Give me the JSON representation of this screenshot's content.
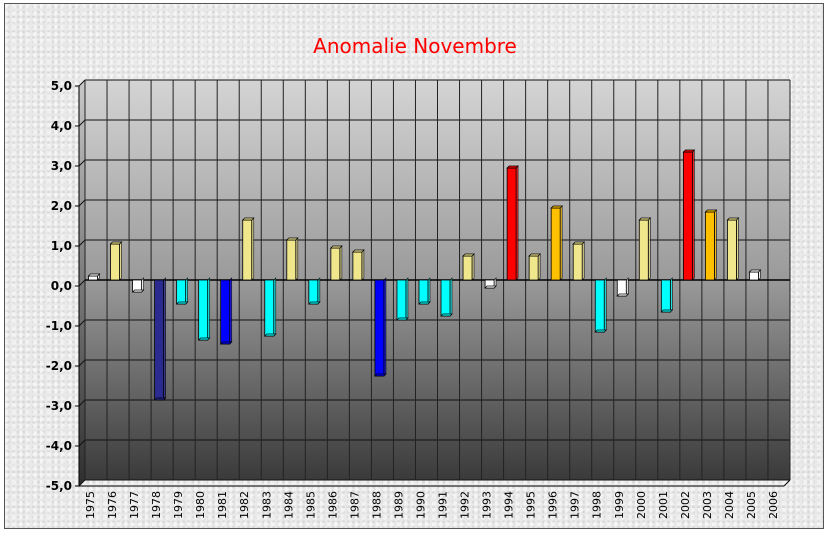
{
  "chart_data": {
    "type": "bar",
    "title": "Anomalie Novembre",
    "xlabel": "",
    "ylabel": "",
    "ylim": [
      -5,
      5
    ],
    "yticks": [
      "5,0",
      "4,0",
      "3,0",
      "2,0",
      "1,0",
      "0,0",
      "-1,0",
      "-2,0",
      "-3,0",
      "-4,0",
      "-5,0"
    ],
    "ytick_values": [
      5,
      4,
      3,
      2,
      1,
      0,
      -1,
      -2,
      -3,
      -4,
      -5
    ],
    "categories": [
      "1975",
      "1976",
      "1977",
      "1978",
      "1979",
      "1980",
      "1981",
      "1982",
      "1983",
      "1984",
      "1985",
      "1986",
      "1987",
      "1988",
      "1989",
      "1990",
      "1991",
      "1992",
      "1993",
      "1994",
      "1995",
      "1996",
      "1997",
      "1998",
      "1999",
      "2000",
      "2001",
      "2002",
      "2003",
      "2004",
      "2005",
      "2006"
    ],
    "values": [
      0.1,
      0.9,
      -0.3,
      -3.0,
      -0.6,
      -1.5,
      -1.6,
      1.5,
      -1.4,
      1.0,
      -0.6,
      0.8,
      0.7,
      -2.4,
      -1.0,
      -0.6,
      -0.9,
      0.6,
      -0.2,
      2.8,
      0.6,
      1.8,
      0.9,
      -1.3,
      -0.4,
      1.5,
      -0.8,
      3.2,
      1.7,
      1.5,
      0.2,
      null
    ],
    "colors": [
      "#ffffff",
      "#f0e68c",
      "#ffffff",
      "#2a2a90",
      "#00ffff",
      "#00ffff",
      "#0000ff",
      "#f0e68c",
      "#00ffff",
      "#f0e68c",
      "#00ffff",
      "#f0e68c",
      "#f0e68c",
      "#0000ff",
      "#00ffff",
      "#00ffff",
      "#00ffff",
      "#f0e68c",
      "#ffffff",
      "#ff0000",
      "#f0e68c",
      "#ffc000",
      "#f0e68c",
      "#00ffff",
      "#ffffff",
      "#f0e68c",
      "#00ffff",
      "#ff0000",
      "#ffc000",
      "#f0e68c",
      "#ffffff",
      "#ffffff"
    ],
    "grid": true,
    "legend": "none"
  }
}
